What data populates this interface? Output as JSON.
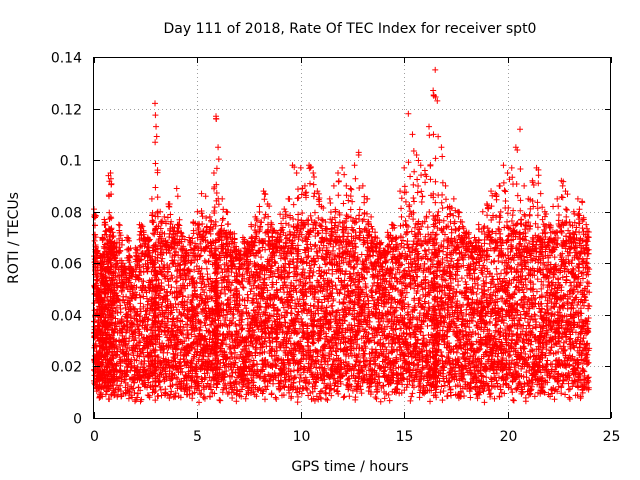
{
  "chart_data": {
    "type": "scatter",
    "title": "Day 111 of 2018, Rate Of TEC Index for receiver spt0",
    "xlabel": "GPS time / hours",
    "ylabel": "ROTI / TECUs",
    "xlim": [
      0,
      25
    ],
    "ylim": [
      0,
      0.14
    ],
    "x_ticks": [
      0,
      5,
      10,
      15,
      20,
      25
    ],
    "x_tick_labels": [
      "0",
      "5",
      "10",
      "15",
      "20",
      "25"
    ],
    "y_ticks": [
      0,
      0.02,
      0.04,
      0.06,
      0.08,
      0.1,
      0.12,
      0.14
    ],
    "y_tick_labels": [
      "0",
      "0.02",
      "0.04",
      "0.06",
      "0.08",
      "0.1",
      "0.12",
      "0.14"
    ],
    "grid": true,
    "marker": "+",
    "color": "#ff0000",
    "series": [
      {
        "name": "ROTI",
        "x": [
          0.0,
          0.1,
          0.2,
          0.3,
          0.4,
          0.5,
          0.6,
          0.7,
          0.8,
          0.9,
          1.0,
          1.2,
          1.4,
          1.6,
          1.8,
          2.0,
          2.2,
          2.4,
          2.6,
          2.8,
          2.95,
          3.0,
          3.2,
          3.4,
          3.6,
          3.8,
          4.0,
          4.2,
          4.4,
          4.6,
          4.8,
          5.0,
          5.2,
          5.4,
          5.6,
          5.8,
          5.9,
          6.0,
          6.2,
          6.4,
          6.6,
          6.8,
          7.0,
          7.2,
          7.4,
          7.6,
          7.8,
          8.0,
          8.2,
          8.4,
          8.6,
          8.8,
          9.0,
          9.2,
          9.4,
          9.6,
          9.8,
          10.0,
          10.2,
          10.4,
          10.6,
          10.8,
          11.0,
          11.2,
          11.4,
          11.6,
          11.8,
          12.0,
          12.2,
          12.4,
          12.6,
          12.8,
          13.0,
          13.2,
          13.4,
          13.6,
          13.8,
          14.0,
          14.2,
          14.4,
          14.6,
          14.8,
          15.0,
          15.2,
          15.4,
          15.6,
          15.8,
          16.0,
          16.2,
          16.4,
          16.5,
          16.6,
          16.8,
          17.0,
          17.2,
          17.4,
          17.6,
          17.8,
          18.0,
          18.2,
          18.4,
          18.6,
          18.8,
          19.0,
          19.2,
          19.4,
          19.6,
          19.8,
          20.0,
          20.2,
          20.4,
          20.6,
          20.8,
          21.0,
          21.2,
          21.4,
          21.6,
          21.8,
          22.0,
          22.2,
          22.4,
          22.6,
          22.8,
          23.0,
          23.2,
          23.4,
          23.6,
          23.8
        ],
        "y": [
          0.081,
          0.066,
          0.05,
          0.063,
          0.07,
          0.077,
          0.071,
          0.094,
          0.095,
          0.072,
          0.068,
          0.075,
          0.06,
          0.07,
          0.058,
          0.066,
          0.075,
          0.072,
          0.07,
          0.085,
          0.122,
          0.113,
          0.08,
          0.078,
          0.083,
          0.074,
          0.089,
          0.072,
          0.065,
          0.07,
          0.076,
          0.08,
          0.087,
          0.086,
          0.078,
          0.095,
          0.117,
          0.105,
          0.085,
          0.08,
          0.072,
          0.068,
          0.065,
          0.07,
          0.068,
          0.075,
          0.078,
          0.082,
          0.088,
          0.083,
          0.075,
          0.072,
          0.079,
          0.081,
          0.085,
          0.098,
          0.095,
          0.097,
          0.09,
          0.098,
          0.095,
          0.088,
          0.082,
          0.076,
          0.085,
          0.09,
          0.095,
          0.097,
          0.09,
          0.089,
          0.098,
          0.103,
          0.09,
          0.085,
          0.078,
          0.07,
          0.068,
          0.065,
          0.072,
          0.075,
          0.07,
          0.088,
          0.097,
          0.118,
          0.11,
          0.102,
          0.098,
          0.096,
          0.113,
          0.127,
          0.135,
          0.123,
          0.105,
          0.09,
          0.082,
          0.085,
          0.08,
          0.076,
          0.072,
          0.068,
          0.07,
          0.075,
          0.08,
          0.083,
          0.088,
          0.087,
          0.09,
          0.098,
          0.095,
          0.097,
          0.105,
          0.112,
          0.09,
          0.085,
          0.092,
          0.097,
          0.087,
          0.08,
          0.075,
          0.082,
          0.085,
          0.092,
          0.088,
          0.076,
          0.08,
          0.085,
          0.084,
          0.075
        ]
      }
    ]
  }
}
